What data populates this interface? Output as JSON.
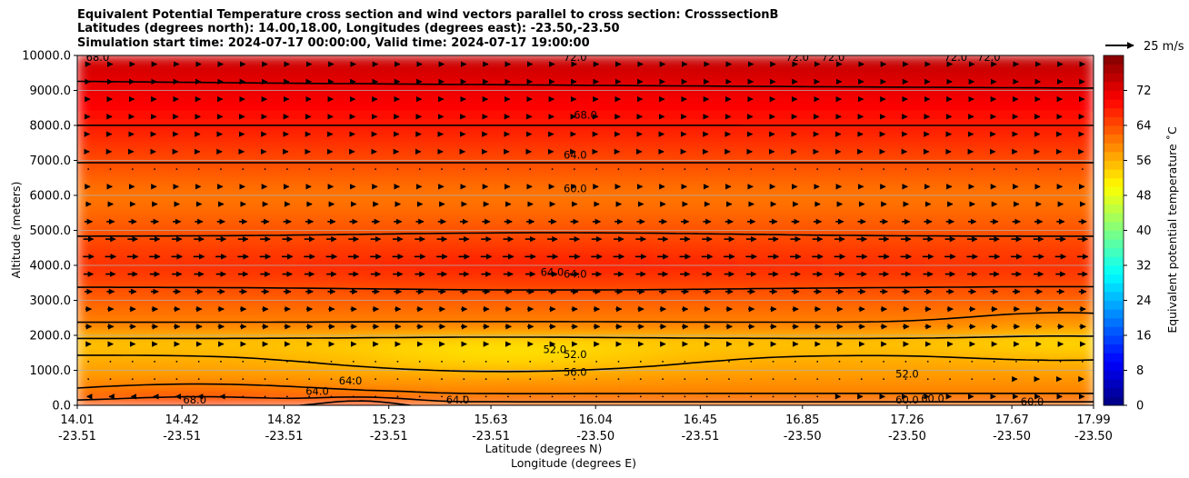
{
  "chart_data": {
    "type": "heatmap",
    "title_lines": [
      "Equivalent Potential Temperature cross section and wind vectors parallel to cross section: CrosssectionB",
      "Latitudes (degrees north): 14.00,18.00, Longitudes (degrees east): -23.50,-23.50",
      "Simulation start time: 2024-07-17 00:00:00, Valid time: 2024-07-17 19:00:00"
    ],
    "xlabel_lat": "Latitude (degrees N)",
    "xlabel_lon": "Longitude (degrees E)",
    "ylabel": "Altitude (meters)",
    "xlim": [
      14.01,
      17.99
    ],
    "ylim": [
      0,
      10000
    ],
    "x_ticks": [
      {
        "lat": "14.01",
        "lon": "-23.51",
        "v": 14.01
      },
      {
        "lat": "14.42",
        "lon": "-23.51",
        "v": 14.42
      },
      {
        "lat": "14.82",
        "lon": "-23.51",
        "v": 14.82
      },
      {
        "lat": "15.23",
        "lon": "-23.51",
        "v": 15.23
      },
      {
        "lat": "15.63",
        "lon": "-23.51",
        "v": 15.63
      },
      {
        "lat": "16.04",
        "lon": "-23.50",
        "v": 16.04
      },
      {
        "lat": "16.45",
        "lon": "-23.51",
        "v": 16.45
      },
      {
        "lat": "16.85",
        "lon": "-23.50",
        "v": 16.85
      },
      {
        "lat": "17.26",
        "lon": "-23.50",
        "v": 17.26
      },
      {
        "lat": "17.67",
        "lon": "-23.50",
        "v": 17.67
      },
      {
        "lat": "17.99",
        "lon": "-23.50",
        "v": 17.99
      }
    ],
    "y_ticks": [
      {
        "label": "0.0",
        "v": 0
      },
      {
        "label": "1000.0",
        "v": 1000
      },
      {
        "label": "2000.0",
        "v": 2000
      },
      {
        "label": "3000.0",
        "v": 3000
      },
      {
        "label": "4000.0",
        "v": 4000
      },
      {
        "label": "5000.0",
        "v": 5000
      },
      {
        "label": "6000.0",
        "v": 6000
      },
      {
        "label": "7000.0",
        "v": 7000
      },
      {
        "label": "8000.0",
        "v": 8000
      },
      {
        "label": "9000.0",
        "v": 9000
      },
      {
        "label": "10000.0",
        "v": 10000
      }
    ],
    "grid": "horizontal",
    "colorbar": {
      "label": "Equivalent potential temperature ˚C",
      "range": [
        0,
        80
      ],
      "ticks": [
        {
          "label": "0",
          "v": 0
        },
        {
          "label": "8",
          "v": 8
        },
        {
          "label": "16",
          "v": 16
        },
        {
          "label": "24",
          "v": 24
        },
        {
          "label": "32",
          "v": 32
        },
        {
          "label": "40",
          "v": 40
        },
        {
          "label": "48",
          "v": 48
        },
        {
          "label": "56",
          "v": 56
        },
        {
          "label": "64",
          "v": 64
        },
        {
          "label": "72",
          "v": 72
        }
      ],
      "cmap": "jet"
    },
    "quiver_key": {
      "label": "25 m/s",
      "speed": 25
    },
    "contour_labels": [
      {
        "text": "68.0",
        "x": 16.0,
        "y": 8300
      },
      {
        "text": "64.0",
        "x": 15.96,
        "y": 7150
      },
      {
        "text": "60.0",
        "x": 15.96,
        "y": 6200
      },
      {
        "text": "64.0",
        "x": 15.87,
        "y": 3800
      },
      {
        "text": "64.0",
        "x": 15.96,
        "y": 3750
      },
      {
        "text": "52.0",
        "x": 15.88,
        "y": 1600
      },
      {
        "text": "52.0",
        "x": 15.96,
        "y": 1450
      },
      {
        "text": "56.0",
        "x": 15.96,
        "y": 950
      },
      {
        "text": "68.0",
        "x": 14.47,
        "y": 150
      },
      {
        "text": "64.0",
        "x": 14.95,
        "y": 400
      },
      {
        "text": "64.0",
        "x": 15.08,
        "y": 700
      },
      {
        "text": "64.0",
        "x": 15.5,
        "y": 150
      },
      {
        "text": "52.0",
        "x": 17.26,
        "y": 900
      },
      {
        "text": "60.0",
        "x": 17.26,
        "y": 150
      },
      {
        "text": "60.0",
        "x": 17.36,
        "y": 200
      },
      {
        "text": "60.0",
        "x": 17.75,
        "y": 100
      },
      {
        "text": "72.0",
        "x": 15.96,
        "y": 9950
      },
      {
        "text": "72.0",
        "x": 16.83,
        "y": 9950
      },
      {
        "text": "72.0",
        "x": 16.97,
        "y": 9950
      },
      {
        "text": "72.0",
        "x": 17.45,
        "y": 9950
      },
      {
        "text": "72.0",
        "x": 17.58,
        "y": 9950
      },
      {
        "text": "68.0",
        "x": 14.09,
        "y": 9950
      }
    ]
  }
}
